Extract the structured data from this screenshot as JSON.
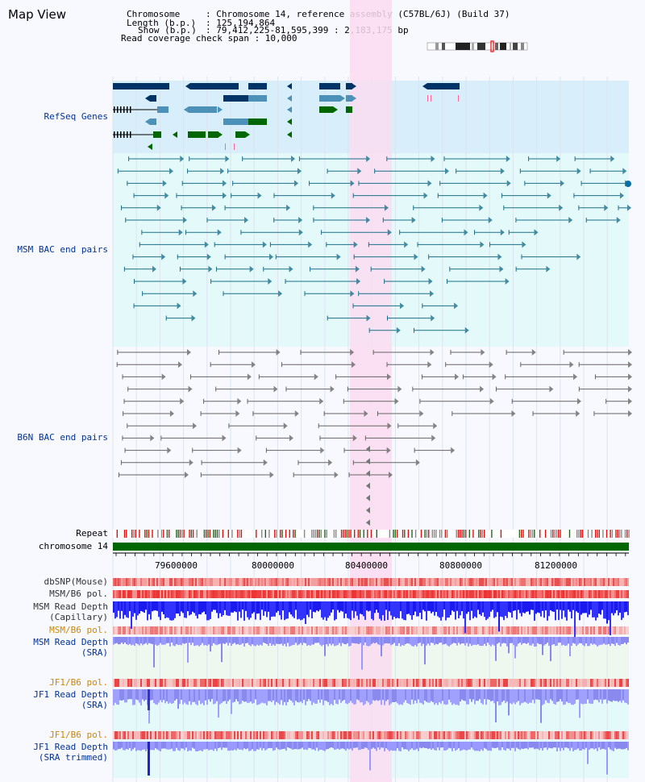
{
  "title": "Map View",
  "info": {
    "chromosome_key": "Chromosome",
    "chromosome_val": ": Chromosome 14, reference assembly (C57BL/6J) (Build 37)",
    "length_key": "Length (b.p.)",
    "length_val": ": 125,194,864",
    "show_key": "Show (b.p.)",
    "show_val": ": 79,412,225-81,595,399 : 2,183,175 bp",
    "coverage": "Read coverage check span : 10,000"
  },
  "tracks": {
    "refseq": "RefSeq Genes",
    "msm_bac": "MSM BAC end pairs",
    "b6n_bac": "B6N BAC end pairs",
    "repeat": "Repeat",
    "chromosome": "chromosome 14",
    "dbsnp": "dbSNP(Mouse)",
    "msm_b6_pol_1": "MSM/B6 pol.",
    "msm_read_depth_cap_1": "MSM Read Depth",
    "msm_read_depth_cap_2": "(Capillary)",
    "msm_b6_pol_2": "MSM/B6 pol.",
    "msm_read_depth_sra_1": "MSM Read Depth",
    "msm_read_depth_sra_2": "(SRA)",
    "jf1_b6_pol_1": "JF1/B6 pol.",
    "jf1_read_depth_sra_1": "JF1 Read Depth",
    "jf1_read_depth_sra_2": "(SRA)",
    "jf1_b6_pol_2": "JF1/B6 pol.",
    "jf1_read_depth_trim_1": "JF1 Read Depth",
    "jf1_read_depth_trim_2": "(SRA trimmed)"
  },
  "ruler": {
    "ticks": [
      "79600000",
      "80000000",
      "80400000",
      "80800000",
      "81200000"
    ]
  },
  "colors": {
    "refseq_bg": "#d8eefa",
    "msm_bg": "#e4fafa",
    "highlight": "#fadcf0",
    "gene_dark": "#003366",
    "gene_mid": "#4d90b8",
    "gene_green": "#006600",
    "msm_line": "#1a6f8a",
    "b6n_line": "#666666",
    "chromosome": "#006600",
    "label_blue": "#003399",
    "label_orange": "#cc8800"
  }
}
